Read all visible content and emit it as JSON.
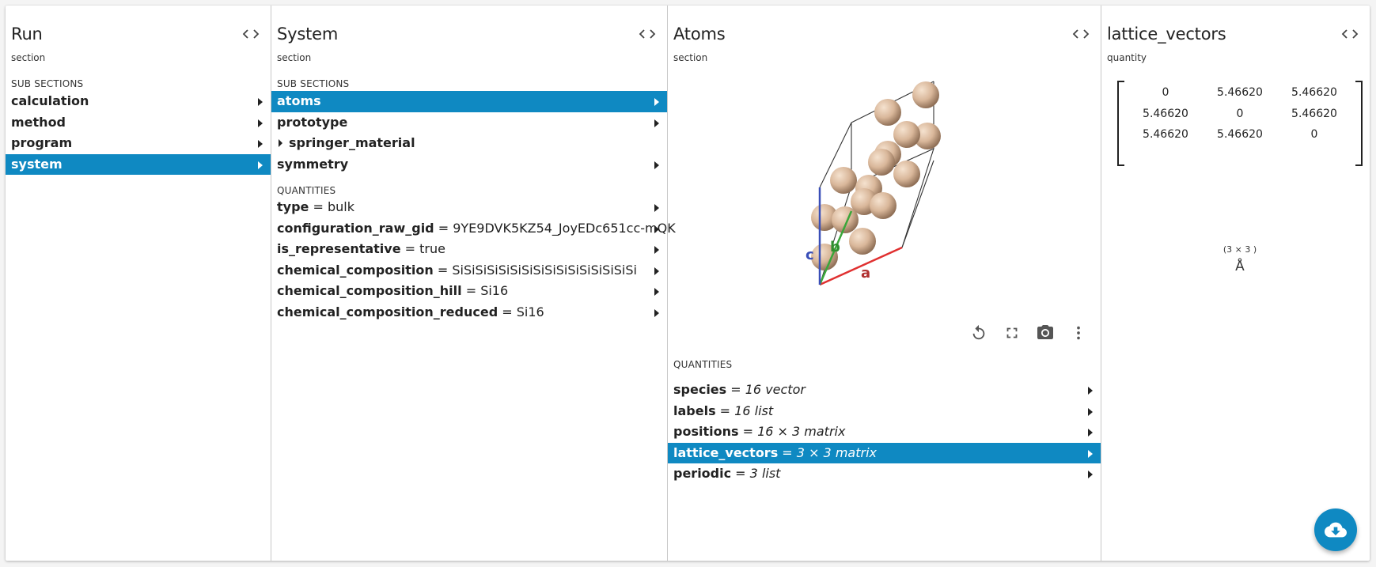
{
  "lanes": [
    {
      "title": "Run",
      "subtitle": "section",
      "sub_sections_label": "SUB SECTIONS",
      "items": [
        {
          "label": "calculation"
        },
        {
          "label": "method"
        },
        {
          "label": "program"
        },
        {
          "label": "system",
          "selected": true
        }
      ]
    },
    {
      "title": "System",
      "subtitle": "section",
      "sub_sections_label": "SUB SECTIONS",
      "items": [
        {
          "label": "atoms",
          "selected": true
        },
        {
          "label": "prototype"
        },
        {
          "label": "springer_material"
        },
        {
          "label": "symmetry"
        }
      ],
      "quantities_label": "QUANTITIES",
      "quantities": [
        {
          "name": "type",
          "value": "bulk"
        },
        {
          "name": "configuration_raw_gid",
          "value": "9YE9DVK5KZ54_JoyEDc651cc-mQK"
        },
        {
          "name": "is_representative",
          "value": "true"
        },
        {
          "name": "chemical_composition",
          "value": "SiSiSiSiSiSiSiSiSiSiSiSiSiSiSiSi"
        },
        {
          "name": "chemical_composition_hill",
          "value": "Si16"
        },
        {
          "name": "chemical_composition_reduced",
          "value": "Si16"
        }
      ]
    },
    {
      "title": "Atoms",
      "subtitle": "section",
      "quantities_label": "QUANTITIES",
      "quantities": [
        {
          "name": "species",
          "value": "16 vector"
        },
        {
          "name": "labels",
          "value": "16 list"
        },
        {
          "name": "positions",
          "value": "16 × 3 matrix"
        },
        {
          "name": "lattice_vectors",
          "value": "3 × 3 matrix",
          "selected": true
        },
        {
          "name": "periodic",
          "value": "3 list"
        }
      ],
      "axis_labels": {
        "a": "a",
        "b": "b",
        "c": "c"
      },
      "tools": [
        "reset-icon",
        "fullscreen-icon",
        "camera-icon",
        "more-vert-icon"
      ]
    },
    {
      "title": "lattice_vectors",
      "subtitle": "quantity",
      "matrix": [
        [
          "0",
          "5.46620",
          "5.46620"
        ],
        [
          "5.46620",
          "0",
          "5.46620"
        ],
        [
          "5.46620",
          "5.46620",
          "0"
        ]
      ],
      "shape": "(3 × 3 )",
      "unit": "Å"
    }
  ],
  "colors": {
    "selection": "#0f89c2",
    "atom": "#d9b79a",
    "axis_a": "#e03030",
    "axis_b": "#3aa63a",
    "axis_c": "#3a4fb8"
  },
  "fab_icon": "cloud-download-icon"
}
